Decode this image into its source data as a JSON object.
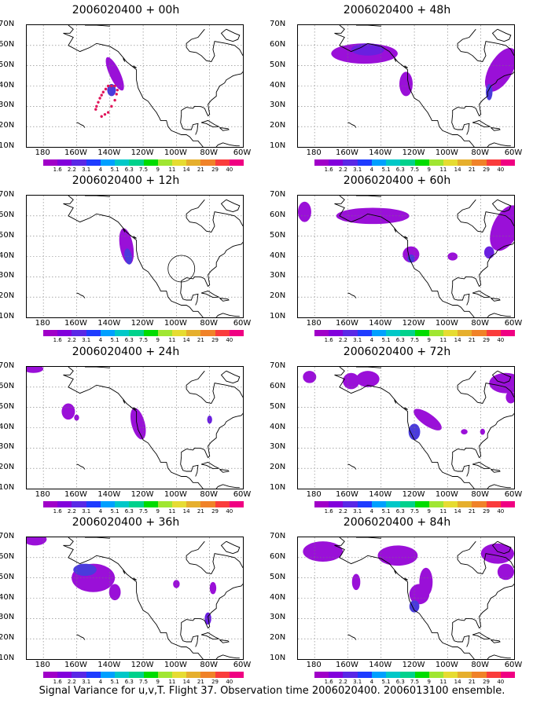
{
  "panels": [
    {
      "title": "2006020400 + 00h"
    },
    {
      "title": "2006020400 + 48h"
    },
    {
      "title": "2006020400 + 12h"
    },
    {
      "title": "2006020400 + 60h"
    },
    {
      "title": "2006020400 + 24h"
    },
    {
      "title": "2006020400 + 72h"
    },
    {
      "title": "2006020400 + 36h"
    },
    {
      "title": "2006020400 + 84h"
    }
  ],
  "axes": {
    "lat_labels": [
      "70N",
      "60N",
      "50N",
      "40N",
      "30N",
      "20N",
      "10N"
    ],
    "lon_labels": [
      "180",
      "160W",
      "140W",
      "120W",
      "100W",
      "80W",
      "60W"
    ],
    "lat_range": [
      10,
      70
    ],
    "lon_range": [
      -190,
      -60
    ]
  },
  "colorbar": {
    "labels": [
      "1.6",
      "2.2",
      "3.1",
      "4",
      "5.1",
      "6.3",
      "7.5",
      "9",
      "11",
      "14",
      "21",
      "29",
      "40"
    ],
    "colors": [
      "#a000c8",
      "#8200dc",
      "#5a28e6",
      "#1e3cff",
      "#00a0ff",
      "#00c8c8",
      "#00d28c",
      "#00dc00",
      "#a0e632",
      "#e6dc32",
      "#e6af2d",
      "#f08228",
      "#fa3c3c",
      "#f00082"
    ]
  },
  "caption": "Signal Variance for u,v,T. Flight 37. Observation time 2006020400. 2006013100 ensemble."
}
